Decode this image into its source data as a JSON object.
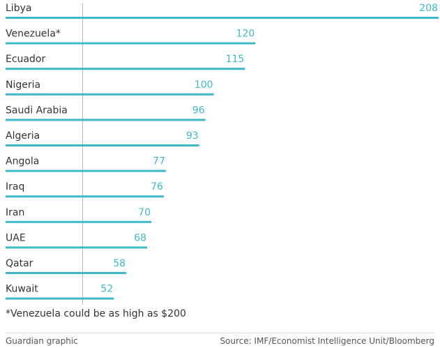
{
  "chart_data": {
    "type": "bar",
    "orientation": "horizontal",
    "categories": [
      "Libya",
      "Venezuela*",
      "Ecuador",
      "Nigeria",
      "Saudi Arabia",
      "Algeria",
      "Angola",
      "Iraq",
      "Iran",
      "UAE",
      "Qatar",
      "Kuwait"
    ],
    "values": [
      208,
      120,
      115,
      100,
      96,
      93,
      77,
      76,
      70,
      68,
      58,
      52
    ],
    "value_labels": [
      "208",
      "120",
      "115",
      "100",
      "96",
      "93",
      "77",
      "76",
      "70",
      "68",
      "58",
      "52"
    ],
    "xlim": [
      0,
      208
    ],
    "bar_color": "#3fb8c8",
    "label_color": "#3fb8c8",
    "grid": false
  },
  "footnote": "*Venezuela could be as high as $200",
  "credit": "Guardian graphic",
  "source": "Source: IMF/Economist Intelligence Unit/Bloomberg"
}
